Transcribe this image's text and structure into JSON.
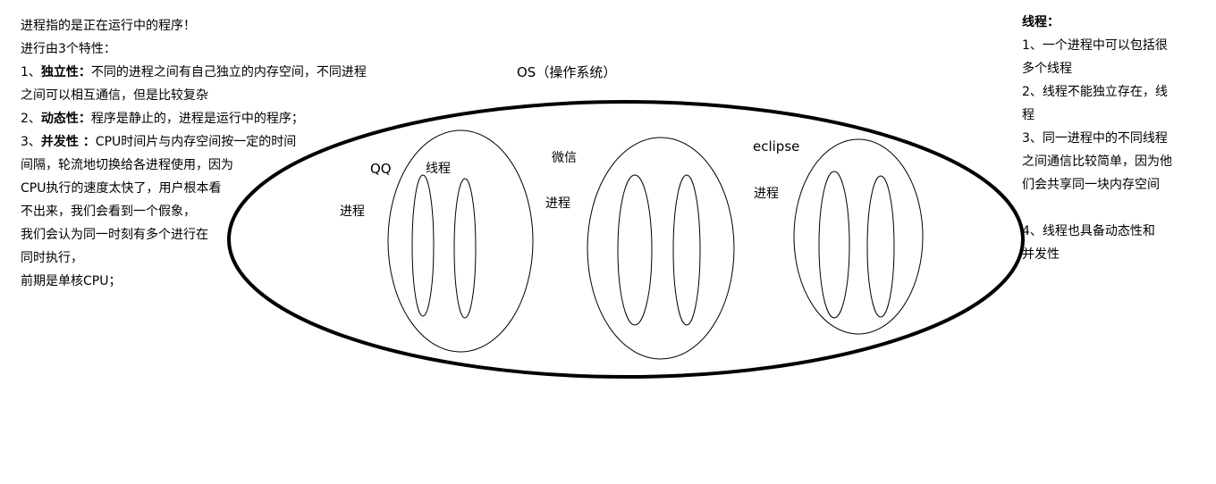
{
  "left_notes": {
    "line1": "进程指的是正在运行中的程序！",
    "line2": "进行由3个特性：",
    "item1_prefix": "1、",
    "item1_term": "独立性：",
    "item1_text": "不同的进程之间有自己独立的内存空间，不同进程",
    "item1_cont": "之间可以相互通信，但是比较复杂",
    "item2_prefix": "2、",
    "item2_term": "动态性：",
    "item2_text": "程序是静止的，进程是运行中的程序；",
    "item3_prefix": "3、",
    "item3_term": "并发性 ：",
    "item3_text": "CPU时间片与内存空间按一定的时间",
    "item3_cont1": "间隔，轮流地切换给各进程使用，因为",
    "item3_cont2": "CPU执行的速度太快了，用户根本看",
    "item3_cont3": "不出来，我们会看到一个假象，",
    "item3_cont4": "我们会认为同一时刻有多个进行在",
    "item3_cont5": "同时执行，",
    "line_last": "前期是单核CPU；"
  },
  "right_notes": {
    "title": "线程：",
    "p1a": "1、一个进程中可以包括很",
    "p1b": "多个线程",
    "p2a": "2、线程不能独立存在，线",
    "p2b": "程",
    "p3a": "3、同一进程中的不同线程",
    "p3b": "之间通信比较简单，因为他",
    "p3c": "们会共享同一块内存空间",
    "p4a": "4、线程也具备动态性和",
    "p4b": "并发性"
  },
  "diagram": {
    "os_label": "OS（操作系统）",
    "processes": [
      {
        "app": "QQ",
        "process_label": "进程",
        "thread_label": "线程"
      },
      {
        "app": "微信",
        "process_label": "进程"
      },
      {
        "app": "eclipse",
        "process_label": "进程"
      }
    ]
  }
}
